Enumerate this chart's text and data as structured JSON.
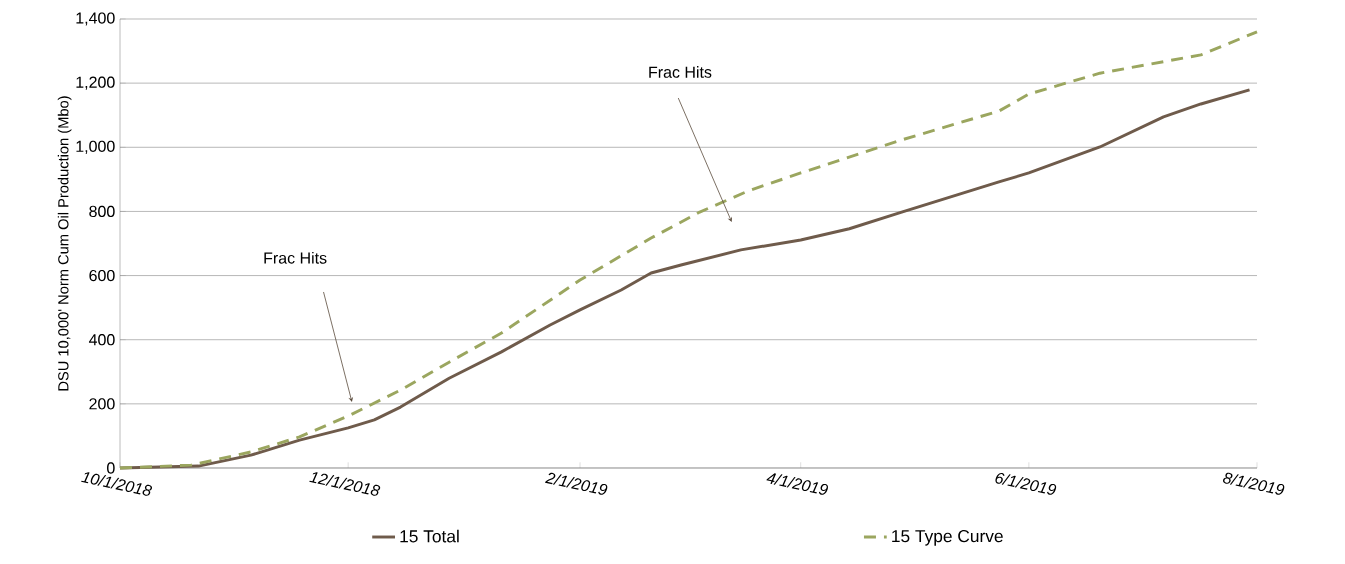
{
  "chart_data": {
    "type": "line",
    "ylabel": "DSU 10,000' Norm Cum Oil Production (Mbo)",
    "xlim": [
      "2018-10-01",
      "2019-08-01"
    ],
    "xticks": [
      {
        "value": "2018-10-01",
        "label": "10/1/2018"
      },
      {
        "value": "2018-12-01",
        "label": "12/1/2018"
      },
      {
        "value": "2019-02-01",
        "label": "2/1/2019"
      },
      {
        "value": "2019-04-01",
        "label": "4/1/2019"
      },
      {
        "value": "2019-06-01",
        "label": "6/1/2019"
      },
      {
        "value": "2019-08-01",
        "label": "8/1/2019"
      }
    ],
    "ylim": [
      0,
      1400
    ],
    "yticks": [
      0,
      200,
      400,
      600,
      800,
      {
        "value": 1000,
        "label": "1,000"
      },
      {
        "value": 1200,
        "label": "1,200"
      },
      {
        "value": 1400,
        "label": "1,400"
      }
    ],
    "grid": "y",
    "legend": "bottom",
    "marker": "none",
    "annotations": [
      "Frac Hits",
      "Frac Hits"
    ],
    "series": [
      {
        "name": "15 Total",
        "color": "#6f5b4b",
        "line_style": "solid",
        "x": [
          "2018-10-01",
          "2018-10-22",
          "2018-11-05",
          "2018-11-18",
          "2018-12-01",
          "2018-12-08",
          "2018-12-15",
          "2018-12-28",
          "2019-01-11",
          "2019-01-24",
          "2019-02-01",
          "2019-02-12",
          "2019-02-20",
          "2019-02-28",
          "2019-03-16",
          "2019-04-01",
          "2019-04-14",
          "2019-04-28",
          "2019-05-24",
          "2019-06-01",
          "2019-06-20",
          "2019-07-07",
          "2019-07-17",
          "2019-07-30"
        ],
        "values": [
          0,
          6,
          40,
          87,
          125,
          150,
          190,
          280,
          362,
          446,
          493,
          555,
          608,
          633,
          680,
          711,
          746,
          798,
          892,
          920,
          1001,
          1095,
          1135,
          1179
        ]
      },
      {
        "name": "15 Type Curve",
        "color": "#9ba65f",
        "line_style": "dashed",
        "x": [
          "2018-10-01",
          "2018-10-20",
          "2018-11-05",
          "2018-11-18",
          "2018-12-01",
          "2018-12-15",
          "2018-12-28",
          "2019-01-11",
          "2019-02-01",
          "2019-02-20",
          "2019-03-05",
          "2019-03-18",
          "2019-04-01",
          "2019-04-28",
          "2019-05-24",
          "2019-06-01",
          "2019-06-20",
          "2019-07-17",
          "2019-08-01"
        ],
        "values": [
          0,
          9,
          50,
          97,
          162,
          243,
          330,
          421,
          586,
          717,
          798,
          864,
          920,
          1023,
          1113,
          1166,
          1231,
          1288,
          1360
        ]
      }
    ]
  }
}
